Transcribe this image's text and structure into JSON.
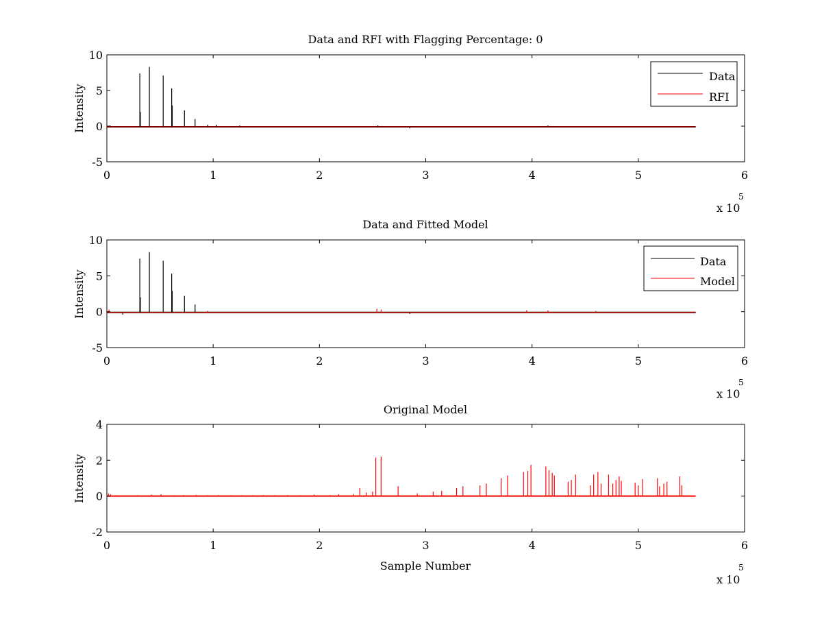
{
  "figure": {
    "colors": {
      "data": "#000000",
      "rfi": "#ff0000",
      "model": "#ff0000"
    }
  },
  "chart_data": [
    {
      "type": "line",
      "title": "Data and RFI with Flagging Percentage: 0",
      "xlabel": "",
      "ylabel": "Intensity",
      "xlim": [
        0,
        600000
      ],
      "ylim": [
        -5,
        10
      ],
      "xticks": [
        0,
        1,
        2,
        3,
        4,
        5,
        6
      ],
      "yticks": [
        -5,
        0,
        5,
        10
      ],
      "x_multiplier": "x 10",
      "x_multiplier_exp": "5",
      "legend": {
        "placement": "top-right",
        "entries": [
          "Data",
          "RFI"
        ]
      },
      "baseline_range": [
        0,
        554000
      ],
      "baseline_value": -0.1,
      "series": [
        {
          "name": "Data",
          "color": "#000000",
          "spikes": [
            {
              "x": 31000,
              "y": 7.4
            },
            {
              "x": 40000,
              "y": 8.3
            },
            {
              "x": 53000,
              "y": 7.1
            },
            {
              "x": 61000,
              "y": 5.3
            },
            {
              "x": 61500,
              "y": 2.9
            },
            {
              "x": 73000,
              "y": 2.2
            },
            {
              "x": 83000,
              "y": 1.0
            },
            {
              "x": 31500,
              "y": 2.0
            },
            {
              "x": 3000,
              "y": 0.1
            },
            {
              "x": 95000,
              "y": 0.2
            },
            {
              "x": 103000,
              "y": 0.2
            },
            {
              "x": 125000,
              "y": 0.1
            },
            {
              "x": 255000,
              "y": 0.1
            },
            {
              "x": 285000,
              "y": -0.3
            },
            {
              "x": 415000,
              "y": 0.1
            }
          ]
        },
        {
          "name": "RFI",
          "color": "#ff0000",
          "spikes": []
        }
      ]
    },
    {
      "type": "line",
      "title": "Data and Fitted Model",
      "xlabel": "",
      "ylabel": "Intensity",
      "xlim": [
        0,
        600000
      ],
      "ylim": [
        -5,
        10
      ],
      "xticks": [
        0,
        1,
        2,
        3,
        4,
        5,
        6
      ],
      "yticks": [
        -5,
        0,
        5,
        10
      ],
      "x_multiplier": "x 10",
      "x_multiplier_exp": "5",
      "legend": {
        "placement": "top-right",
        "entries": [
          "Data",
          "Model"
        ]
      },
      "baseline_range": [
        0,
        554000
      ],
      "baseline_value": -0.1,
      "series": [
        {
          "name": "Data",
          "color": "#000000",
          "spikes": [
            {
              "x": 31000,
              "y": 7.4
            },
            {
              "x": 40000,
              "y": 8.3
            },
            {
              "x": 53000,
              "y": 7.1
            },
            {
              "x": 61000,
              "y": 5.3
            },
            {
              "x": 61500,
              "y": 2.9
            },
            {
              "x": 73000,
              "y": 2.2
            },
            {
              "x": 83000,
              "y": 1.0
            },
            {
              "x": 31500,
              "y": 2.0
            },
            {
              "x": 15000,
              "y": -0.4
            },
            {
              "x": 285000,
              "y": -0.3
            }
          ]
        },
        {
          "name": "Model",
          "color": "#ff0000",
          "spikes": [
            {
              "x": 2000,
              "y": 0.3
            },
            {
              "x": 95000,
              "y": 0.1
            },
            {
              "x": 254000,
              "y": 0.4
            },
            {
              "x": 258000,
              "y": 0.3
            },
            {
              "x": 395000,
              "y": 0.2
            },
            {
              "x": 415000,
              "y": 0.2
            },
            {
              "x": 460000,
              "y": 0.1
            }
          ]
        }
      ]
    },
    {
      "type": "line",
      "title": "Original Model",
      "xlabel": "Sample Number",
      "ylabel": "Intensity",
      "xlim": [
        0,
        600000
      ],
      "ylim": [
        -2,
        4
      ],
      "xticks": [
        0,
        1,
        2,
        3,
        4,
        5,
        6
      ],
      "yticks": [
        -2,
        0,
        2,
        4
      ],
      "x_multiplier": "x 10",
      "x_multiplier_exp": "5",
      "legend": null,
      "baseline_range": [
        0,
        554000
      ],
      "baseline_value": 0,
      "series": [
        {
          "name": "",
          "color": "#ff0000",
          "spikes": [
            {
              "x": 1500,
              "y": 0.15
            },
            {
              "x": 3500,
              "y": 0.1
            },
            {
              "x": 9000,
              "y": 0.05
            },
            {
              "x": 29000,
              "y": 0.05
            },
            {
              "x": 42000,
              "y": 0.08
            },
            {
              "x": 51000,
              "y": 0.1
            },
            {
              "x": 63000,
              "y": 0.05
            },
            {
              "x": 72000,
              "y": 0.06
            },
            {
              "x": 84000,
              "y": 0.07
            },
            {
              "x": 95000,
              "y": 0.05
            },
            {
              "x": 105000,
              "y": 0.06
            },
            {
              "x": 117000,
              "y": 0.05
            },
            {
              "x": 127000,
              "y": 0.05
            },
            {
              "x": 137000,
              "y": 0.05
            },
            {
              "x": 147000,
              "y": 0.06
            },
            {
              "x": 158000,
              "y": 0.05
            },
            {
              "x": 170000,
              "y": 0.06
            },
            {
              "x": 182000,
              "y": 0.05
            },
            {
              "x": 195000,
              "y": 0.08
            },
            {
              "x": 210000,
              "y": 0.06
            },
            {
              "x": 218000,
              "y": 0.1
            },
            {
              "x": 232000,
              "y": 0.12
            },
            {
              "x": 238000,
              "y": 0.45
            },
            {
              "x": 244000,
              "y": 0.2
            },
            {
              "x": 250000,
              "y": 0.25
            },
            {
              "x": 253000,
              "y": 2.15
            },
            {
              "x": 258000,
              "y": 2.2
            },
            {
              "x": 274000,
              "y": 0.55
            },
            {
              "x": 292000,
              "y": 0.15
            },
            {
              "x": 307000,
              "y": 0.25
            },
            {
              "x": 315000,
              "y": 0.3
            },
            {
              "x": 329000,
              "y": 0.45
            },
            {
              "x": 335000,
              "y": 0.55
            },
            {
              "x": 351000,
              "y": 0.6
            },
            {
              "x": 357000,
              "y": 0.7
            },
            {
              "x": 371000,
              "y": 1.0
            },
            {
              "x": 377000,
              "y": 1.15
            },
            {
              "x": 392000,
              "y": 1.35
            },
            {
              "x": 396000,
              "y": 1.4
            },
            {
              "x": 399000,
              "y": 1.75
            },
            {
              "x": 413000,
              "y": 1.65
            },
            {
              "x": 416000,
              "y": 1.45
            },
            {
              "x": 419000,
              "y": 1.3
            },
            {
              "x": 421000,
              "y": 1.15
            },
            {
              "x": 434000,
              "y": 0.8
            },
            {
              "x": 437000,
              "y": 0.9
            },
            {
              "x": 441000,
              "y": 1.2
            },
            {
              "x": 455000,
              "y": 0.6
            },
            {
              "x": 458000,
              "y": 1.2
            },
            {
              "x": 462000,
              "y": 1.35
            },
            {
              "x": 465000,
              "y": 0.7
            },
            {
              "x": 472000,
              "y": 1.2
            },
            {
              "x": 476000,
              "y": 0.7
            },
            {
              "x": 479000,
              "y": 0.9
            },
            {
              "x": 482000,
              "y": 1.1
            },
            {
              "x": 484000,
              "y": 0.85
            },
            {
              "x": 497000,
              "y": 0.75
            },
            {
              "x": 500000,
              "y": 0.6
            },
            {
              "x": 504000,
              "y": 0.95
            },
            {
              "x": 518000,
              "y": 1.0
            },
            {
              "x": 520000,
              "y": 0.55
            },
            {
              "x": 524000,
              "y": 0.7
            },
            {
              "x": 527000,
              "y": 0.8
            },
            {
              "x": 539000,
              "y": 1.1
            },
            {
              "x": 541000,
              "y": 0.6
            }
          ]
        }
      ]
    }
  ]
}
